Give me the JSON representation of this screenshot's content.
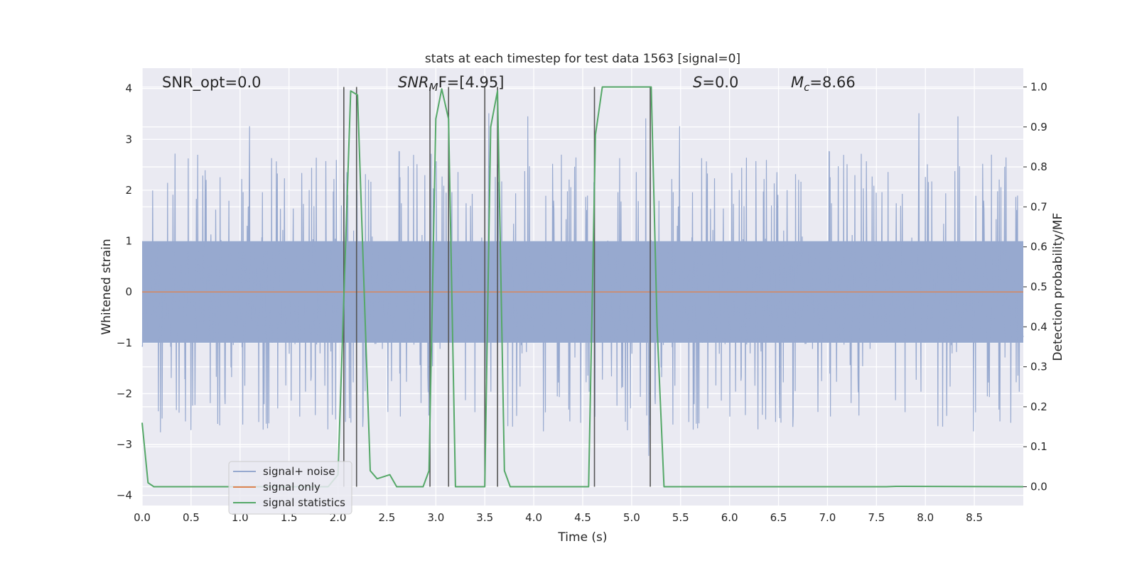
{
  "chart_data": {
    "type": "line",
    "title": "stats at each timestep for test data 1563 [signal=0]",
    "xlabel": "Time (s)",
    "ylabel_left": "Whitened strain",
    "ylabel_right": "Detection probability/MF",
    "xlim": [
      0.0,
      9.0
    ],
    "ylim_left": [
      -4.2,
      4.4
    ],
    "ylim_right": [
      -0.047,
      1.047
    ],
    "x_ticks": [
      "0.0",
      "0.5",
      "1.0",
      "1.5",
      "2.0",
      "2.5",
      "3.0",
      "3.5",
      "4.0",
      "4.5",
      "5.0",
      "5.5",
      "6.0",
      "6.5",
      "7.0",
      "7.5",
      "8.0",
      "8.5"
    ],
    "y_ticks_left": [
      "−4",
      "−3",
      "−2",
      "−1",
      "0",
      "1",
      "2",
      "3",
      "4"
    ],
    "y_ticks_right": [
      "0.0",
      "0.1",
      "0.2",
      "0.3",
      "0.4",
      "0.5",
      "0.6",
      "0.7",
      "0.8",
      "0.9",
      "1.0"
    ],
    "grid": true,
    "legend_position": "lower-left",
    "colors": {
      "noise": "#97a9cf",
      "signal_only": "#dd8452",
      "statistics": "#55a868",
      "vlines": "#555555",
      "background": "#eaeaf2",
      "grid": "#ffffff"
    },
    "annotations": {
      "snr_opt": "SNR_opt=0.0",
      "snr_mf_main": "SNR",
      "snr_mf_sub": "M",
      "snr_mf_rest": "F=[4.95]",
      "s_main": "S",
      "s_rest": "=0.0",
      "mc_main": "M",
      "mc_sub": "c",
      "mc_rest": "=8.66"
    },
    "series": [
      {
        "name": "signal+ noise",
        "axis": "left",
        "envelope": {
          "core_band": [
            -1.0,
            1.0
          ],
          "typical_spike_peak": 2.6,
          "max_positive": 3.7,
          "max_negative": -3.8
        }
      },
      {
        "name": "signal only",
        "axis": "left",
        "x": [
          0.0,
          9.0
        ],
        "y": [
          0.0,
          0.0
        ]
      },
      {
        "name": "signal statistics",
        "axis": "right",
        "x": [
          0.0,
          0.06,
          0.12,
          0.2,
          1.9,
          2.0,
          2.06,
          2.13,
          2.2,
          2.33,
          2.4,
          2.53,
          2.6,
          2.7,
          2.87,
          2.93,
          3.0,
          3.06,
          3.13,
          3.2,
          3.3,
          3.5,
          3.56,
          3.63,
          3.7,
          3.76,
          4.5,
          4.56,
          4.63,
          4.7,
          5.2,
          5.26,
          5.33,
          7.6,
          7.7,
          9.0
        ],
        "y": [
          0.16,
          0.01,
          0.0,
          0.0,
          0.0,
          0.03,
          0.47,
          0.99,
          0.98,
          0.04,
          0.02,
          0.03,
          0.0,
          0.0,
          0.0,
          0.04,
          0.92,
          0.995,
          0.92,
          0.0,
          0.0,
          0.0,
          0.9,
          0.99,
          0.04,
          0.0,
          0.0,
          0.0,
          0.88,
          1.0,
          1.0,
          0.4,
          0.0,
          0.0,
          0.001,
          0.0
        ]
      }
    ],
    "vertical_markers": {
      "x": [
        2.06,
        2.19,
        2.94,
        3.13,
        3.5,
        3.63,
        4.62,
        5.19
      ],
      "y_top": 1.0,
      "y_bottom": 0.0,
      "axis": "right"
    }
  }
}
